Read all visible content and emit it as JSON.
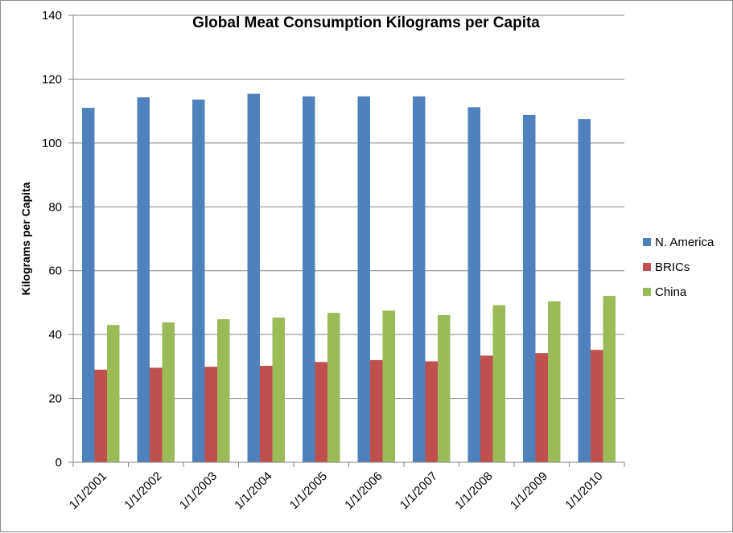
{
  "chart_data": {
    "type": "bar",
    "title": "Global Meat Consumption Kilograms per Capita",
    "xlabel": "",
    "ylabel": "Kilograms per Capita",
    "ylim": [
      0,
      140
    ],
    "yticks": [
      0,
      20,
      40,
      60,
      80,
      100,
      120,
      140
    ],
    "grid": true,
    "legend": "right",
    "categories": [
      "1/1/2001",
      "1/1/2002",
      "1/1/2003",
      "1/1/2004",
      "1/1/2005",
      "1/1/2006",
      "1/1/2007",
      "1/1/2008",
      "1/1/2009",
      "1/1/2010"
    ],
    "series": [
      {
        "name": "N. America",
        "color": "#4f81bd",
        "values": [
          111.0,
          114.3,
          113.6,
          115.4,
          114.6,
          114.6,
          114.6,
          111.2,
          108.8,
          107.5
        ]
      },
      {
        "name": "BRICs",
        "color": "#c0504d",
        "values": [
          29.0,
          29.6,
          29.9,
          30.2,
          31.4,
          32.0,
          31.6,
          33.4,
          34.2,
          35.2
        ]
      },
      {
        "name": "China",
        "color": "#9bbb59",
        "values": [
          43.0,
          43.8,
          44.8,
          45.3,
          46.8,
          47.5,
          46.1,
          49.2,
          50.4,
          52.1
        ]
      }
    ]
  }
}
